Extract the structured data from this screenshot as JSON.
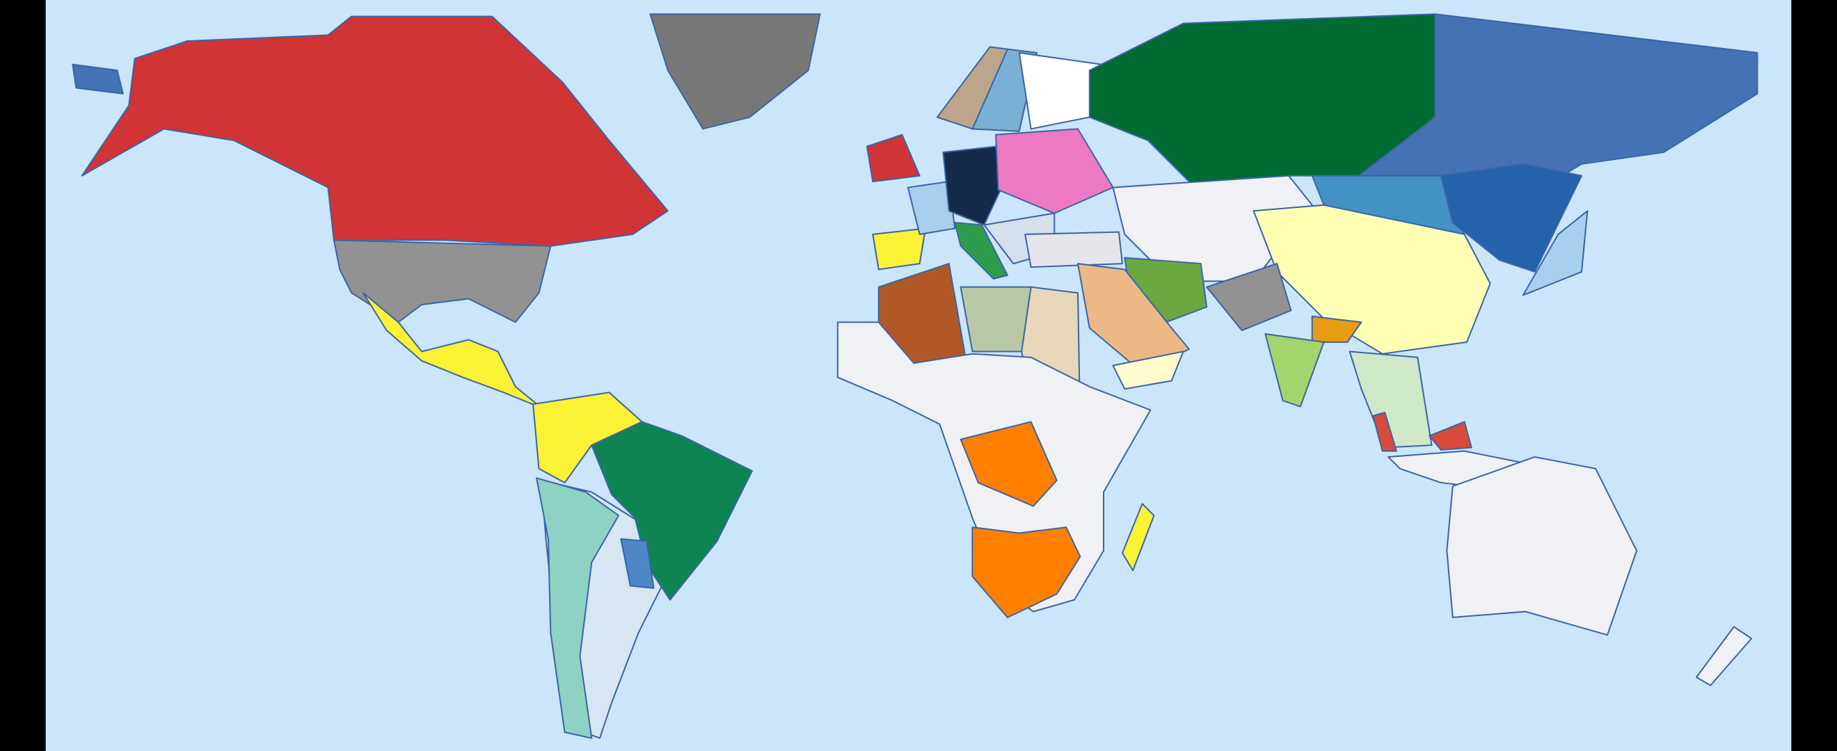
{
  "map": {
    "ocean_color": "#cbe5fb",
    "border_color": "#3a64a8",
    "frame_color": "#000000",
    "regions": [
      {
        "id": "alaska-west",
        "color": "#4472b4"
      },
      {
        "id": "north-america-north",
        "color": "#d03434"
      },
      {
        "id": "united-states",
        "color": "#929292"
      },
      {
        "id": "greenland",
        "color": "#777777"
      },
      {
        "id": "mexico-central-america",
        "color": "#fbf236"
      },
      {
        "id": "southern-cone",
        "color": "#d6e6f2"
      },
      {
        "id": "andes-west",
        "color": "#8ed2c4"
      },
      {
        "id": "gran-colombia",
        "color": "#fbf236"
      },
      {
        "id": "brazil",
        "color": "#0e8452"
      },
      {
        "id": "paraguay",
        "color": "#4f86c6"
      },
      {
        "id": "iberia",
        "color": "#fbf236"
      },
      {
        "id": "british-isles",
        "color": "#d03434"
      },
      {
        "id": "france",
        "color": "#a8cfee"
      },
      {
        "id": "scandinavia",
        "color": "#7aafd6"
      },
      {
        "id": "norway",
        "color": "#bca58a"
      },
      {
        "id": "finland-karelia",
        "color": "#ffffff"
      },
      {
        "id": "central-europe",
        "color": "#132a4a"
      },
      {
        "id": "poland-ukraine",
        "color": "#ee7ac4"
      },
      {
        "id": "italy",
        "color": "#2c9c4a"
      },
      {
        "id": "balkans",
        "color": "#d6e0ec"
      },
      {
        "id": "anatolia",
        "color": "#e4e6ec"
      },
      {
        "id": "russia",
        "color": "#006c32"
      },
      {
        "id": "siberia",
        "color": "#4472b4"
      },
      {
        "id": "mongolia",
        "color": "#4292c6"
      },
      {
        "id": "manchuria",
        "color": "#2462aa"
      },
      {
        "id": "japan",
        "color": "#a8cfee"
      },
      {
        "id": "central-asia",
        "color": "#f0f1f4"
      },
      {
        "id": "china",
        "color": "#ffffb4"
      },
      {
        "id": "iran",
        "color": "#6ca840"
      },
      {
        "id": "arabia",
        "color": "#ecb884"
      },
      {
        "id": "yemen",
        "color": "#fffbcc"
      },
      {
        "id": "afghanistan-pakistan",
        "color": "#929292"
      },
      {
        "id": "bengal",
        "color": "#e89c14"
      },
      {
        "id": "india",
        "color": "#a4d46c"
      },
      {
        "id": "indochina",
        "color": "#cfe8c8"
      },
      {
        "id": "algeria",
        "color": "#b25826"
      },
      {
        "id": "libya",
        "color": "#b8c8a4"
      },
      {
        "id": "egypt-sudan",
        "color": "#e6d8b8"
      },
      {
        "id": "africa",
        "color": "#f0f1f4"
      },
      {
        "id": "congo",
        "color": "#ff7f00"
      },
      {
        "id": "southern-africa",
        "color": "#ff7f00"
      },
      {
        "id": "madagascar",
        "color": "#fbf236"
      },
      {
        "id": "malaya",
        "color": "#d84a3a"
      },
      {
        "id": "borneo-north",
        "color": "#d84a3a"
      },
      {
        "id": "indonesia",
        "color": "#f0f1f4"
      },
      {
        "id": "australia",
        "color": "#f0f1f4"
      },
      {
        "id": "new-zealand",
        "color": "#f0f1f4"
      }
    ]
  }
}
